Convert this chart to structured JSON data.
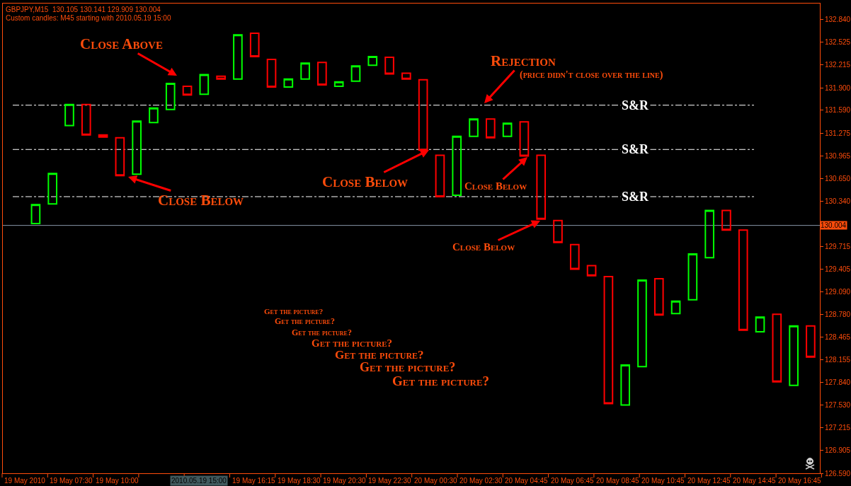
{
  "chart_data": {
    "type": "candlestick",
    "title": "GBPJPY,M15  130.105 130.141 129.909 130.004",
    "subtitle": "Custom candles: M45 starting with 2010.05.19 15:00",
    "categories": [
      null,
      null,
      null,
      null,
      null,
      null,
      null,
      null,
      null,
      null,
      null,
      null,
      null,
      null,
      null,
      null,
      null,
      null,
      null,
      null,
      null,
      null,
      null,
      null,
      null,
      null,
      null,
      null,
      null,
      null,
      null,
      null,
      null,
      null,
      null,
      null,
      null,
      null,
      null,
      null,
      null,
      null,
      null,
      null,
      null,
      null,
      null
    ],
    "ohlc": [
      [
        130.03,
        130.29,
        130.03,
        130.29
      ],
      [
        130.3,
        130.72,
        130.3,
        130.72
      ],
      [
        131.38,
        131.67,
        131.38,
        131.67
      ],
      [
        131.67,
        131.67,
        131.25,
        131.25
      ],
      [
        131.25,
        131.25,
        131.22,
        131.22
      ],
      [
        131.21,
        131.21,
        130.69,
        130.69
      ],
      [
        130.71,
        131.44,
        130.71,
        131.44
      ],
      [
        131.42,
        131.62,
        131.42,
        131.62
      ],
      [
        131.6,
        131.96,
        131.6,
        131.96
      ],
      [
        131.92,
        131.92,
        131.8,
        131.8
      ],
      [
        131.81,
        132.08,
        131.81,
        132.08
      ],
      [
        132.06,
        132.06,
        132.02,
        132.02
      ],
      [
        132.02,
        132.63,
        132.02,
        132.63
      ],
      [
        132.65,
        132.65,
        132.33,
        132.33
      ],
      [
        132.29,
        132.29,
        131.91,
        131.91
      ],
      [
        131.91,
        132.02,
        131.91,
        132.02
      ],
      [
        132.02,
        132.24,
        132.02,
        132.24
      ],
      [
        132.25,
        132.25,
        131.94,
        131.94
      ],
      [
        131.92,
        131.98,
        131.92,
        131.98
      ],
      [
        131.99,
        132.2,
        131.99,
        132.2
      ],
      [
        132.21,
        132.33,
        132.21,
        132.33
      ],
      [
        132.32,
        132.32,
        132.09,
        132.09
      ],
      [
        132.1,
        132.1,
        132.02,
        132.02
      ],
      [
        132.01,
        132.01,
        131.04,
        131.04
      ],
      [
        130.97,
        130.97,
        130.4,
        130.4
      ],
      [
        130.42,
        131.23,
        130.42,
        131.23
      ],
      [
        131.23,
        131.47,
        131.23,
        131.47
      ],
      [
        131.47,
        131.47,
        131.21,
        131.21
      ],
      [
        131.23,
        131.41,
        131.23,
        131.41
      ],
      [
        131.43,
        131.43,
        130.96,
        130.96
      ],
      [
        130.97,
        130.97,
        130.09,
        130.09
      ],
      [
        130.07,
        130.07,
        129.77,
        129.77
      ],
      [
        129.74,
        129.74,
        129.4,
        129.4
      ],
      [
        129.45,
        129.45,
        129.31,
        129.31
      ],
      [
        129.3,
        129.3,
        127.55,
        127.55
      ],
      [
        127.53,
        128.08,
        127.53,
        128.08
      ],
      [
        128.06,
        129.25,
        128.06,
        129.25
      ],
      [
        129.27,
        129.27,
        128.77,
        128.77
      ],
      [
        128.79,
        128.96,
        128.79,
        128.96
      ],
      [
        128.98,
        129.61,
        128.98,
        129.61
      ],
      [
        129.56,
        130.21,
        129.56,
        130.21
      ],
      [
        130.21,
        130.21,
        129.94,
        129.94
      ],
      [
        129.94,
        129.94,
        128.56,
        128.56
      ],
      [
        128.54,
        128.74,
        128.54,
        128.74
      ],
      [
        128.78,
        128.78,
        127.85,
        127.85
      ],
      [
        127.8,
        128.62,
        127.8,
        128.62
      ],
      [
        128.62,
        128.62,
        128.19,
        128.19
      ]
    ],
    "ylim": [
      126.59,
      133.06
    ],
    "yticks": [
      {
        "value": 132.84,
        "label": "132.840"
      },
      {
        "value": 132.525,
        "label": "132.525"
      },
      {
        "value": 132.215,
        "label": "132.215"
      },
      {
        "value": 131.9,
        "label": "131.900"
      },
      {
        "value": 131.59,
        "label": "131.590"
      },
      {
        "value": 131.275,
        "label": "131.275"
      },
      {
        "value": 130.965,
        "label": "130.965"
      },
      {
        "value": 130.65,
        "label": "130.650"
      },
      {
        "value": 130.34,
        "label": "130.340"
      },
      {
        "value": 129.715,
        "label": "129.715"
      },
      {
        "value": 129.405,
        "label": "129.405"
      },
      {
        "value": 129.09,
        "label": "129.090"
      },
      {
        "value": 128.78,
        "label": "128.780"
      },
      {
        "value": 128.465,
        "label": "128.465"
      },
      {
        "value": 128.155,
        "label": "128.155"
      },
      {
        "value": 127.84,
        "label": "127.840"
      },
      {
        "value": 127.53,
        "label": "127.530"
      },
      {
        "value": 127.215,
        "label": "127.215"
      },
      {
        "value": 126.905,
        "label": "126.905"
      },
      {
        "value": 126.59,
        "label": "126.590"
      }
    ],
    "ref_lines": [
      {
        "axis": "y",
        "value": 131.66,
        "label": "S&R",
        "color": "#ffffff",
        "line_style": "dashed"
      },
      {
        "axis": "y",
        "value": 131.05,
        "label": "S&R",
        "color": "#ffffff",
        "line_style": "dashed"
      },
      {
        "axis": "y",
        "value": 130.4,
        "label": "S&R",
        "color": "#ffffff",
        "line_style": "dashed"
      },
      {
        "axis": "y",
        "value": 130.004,
        "label": "130.004",
        "color": "#8896a8",
        "line_style": "solid"
      }
    ],
    "annotations": [
      "Close Above",
      "Close Below",
      "Close Below",
      "Rejection",
      "(price didn't close over the line)",
      "Close Below",
      "Close Below",
      "Get the picture?",
      "Get the picture?",
      "Get the picture?",
      "Get the picture?",
      "Get the picture?",
      "Get the picture?",
      "Get the picture?",
      "19 May 2010",
      "19 May 07:30",
      "19 May 10:00",
      "2010.05.19 15:00",
      "19 May 16:15",
      "19 May 18:30",
      "19 May 20:30",
      "19 May 22:30",
      "20 May 00:30",
      "20 May 02:30",
      "20 May 04:45",
      "20 May 06:45",
      "20 May 08:45",
      "20 May 10:45",
      "20 May 12:45",
      "20 May 14:45",
      "20 May 16:45"
    ],
    "grid": false,
    "legend": false
  }
}
